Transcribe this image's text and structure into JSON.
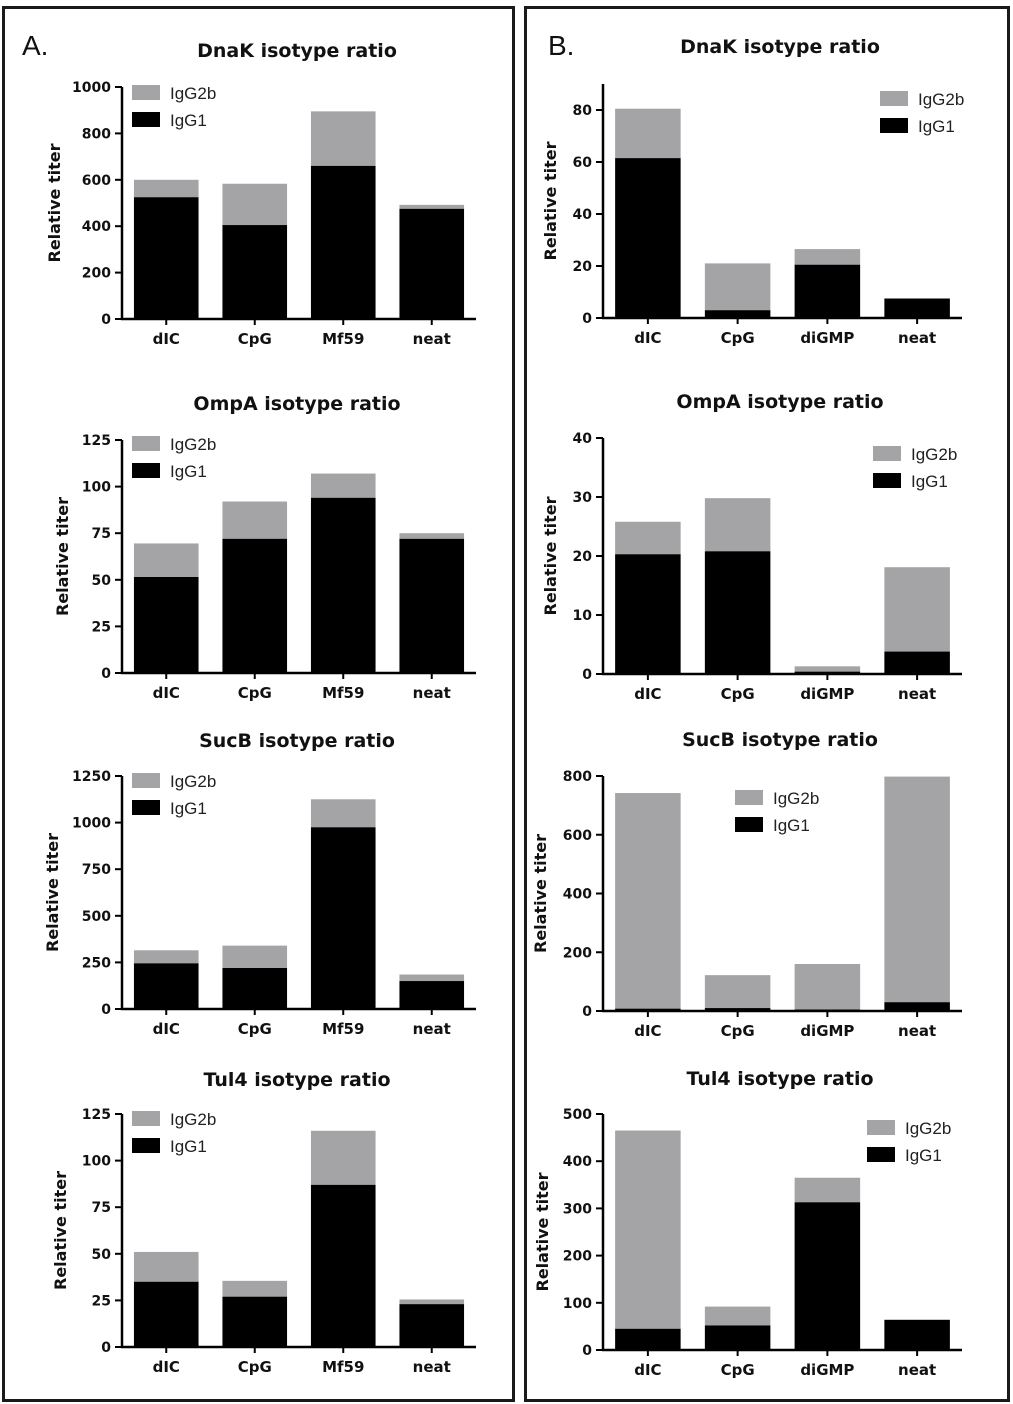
{
  "panels": [
    {
      "label": "A."
    },
    {
      "label": "B."
    }
  ],
  "colors": {
    "IgG2b": "#a4a4a6",
    "IgG1": "#000000"
  },
  "chart_data": [
    {
      "panel": "A.",
      "type": "bar",
      "stacked": true,
      "title": "DnaK isotype ratio",
      "xlabel": "",
      "ylabel": "Relative titer",
      "categories": [
        "dIC",
        "CpG",
        "Mf59",
        "neat"
      ],
      "ylim": [
        0,
        1000
      ],
      "yticks": [
        0,
        200,
        400,
        600,
        800,
        1000
      ],
      "legend": "top-left",
      "series": [
        {
          "name": "IgG1",
          "values": [
            525,
            405,
            660,
            475
          ]
        },
        {
          "name": "IgG2b",
          "values": [
            75,
            178,
            235,
            17
          ]
        }
      ]
    },
    {
      "panel": "A.",
      "type": "bar",
      "stacked": true,
      "title": "OmpA isotype ratio",
      "xlabel": "",
      "ylabel": "Relative titer",
      "categories": [
        "dIC",
        "CpG",
        "Mf59",
        "neat"
      ],
      "ylim": [
        0,
        125
      ],
      "yticks": [
        0,
        25,
        50,
        75,
        100,
        125
      ],
      "legend": "top-left",
      "series": [
        {
          "name": "IgG1",
          "values": [
            51.5,
            72,
            94,
            72
          ]
        },
        {
          "name": "IgG2b",
          "values": [
            18,
            20,
            13,
            3
          ]
        }
      ]
    },
    {
      "panel": "A.",
      "type": "bar",
      "stacked": true,
      "title": "SucB isotype ratio",
      "xlabel": "",
      "ylabel": "Relative titer",
      "categories": [
        "dIC",
        "CpG",
        "Mf59",
        "neat"
      ],
      "ylim": [
        0,
        1250
      ],
      "yticks": [
        0,
        250,
        500,
        750,
        1000,
        1250
      ],
      "legend": "top-left",
      "series": [
        {
          "name": "IgG1",
          "values": [
            245,
            220,
            975,
            150
          ]
        },
        {
          "name": "IgG2b",
          "values": [
            70,
            120,
            150,
            35
          ]
        }
      ]
    },
    {
      "panel": "A.",
      "type": "bar",
      "stacked": true,
      "title": "Tul4 isotype ratio",
      "xlabel": "",
      "ylabel": "Relative titer",
      "categories": [
        "dIC",
        "CpG",
        "Mf59",
        "neat"
      ],
      "ylim": [
        0,
        125
      ],
      "yticks": [
        0,
        25,
        50,
        75,
        100,
        125
      ],
      "legend": "top-left",
      "series": [
        {
          "name": "IgG1",
          "values": [
            35,
            27,
            87,
            23
          ]
        },
        {
          "name": "IgG2b",
          "values": [
            16,
            8.5,
            29,
            2.5
          ]
        }
      ]
    },
    {
      "panel": "B.",
      "type": "bar",
      "stacked": true,
      "title": "DnaK isotype ratio",
      "xlabel": "",
      "ylabel": "Relative titer",
      "categories": [
        "dIC",
        "CpG",
        "diGMP",
        "neat"
      ],
      "ylim": [
        0,
        90
      ],
      "yticks": [
        0,
        20,
        40,
        60,
        80
      ],
      "legend": "top-right",
      "series": [
        {
          "name": "IgG1",
          "values": [
            61.5,
            3,
            20.5,
            7.5
          ]
        },
        {
          "name": "IgG2b",
          "values": [
            19,
            18,
            6,
            0
          ]
        }
      ]
    },
    {
      "panel": "B.",
      "type": "bar",
      "stacked": true,
      "title": "OmpA isotype ratio",
      "xlabel": "",
      "ylabel": "Relative titer",
      "categories": [
        "dIC",
        "CpG",
        "diGMP",
        "neat"
      ],
      "ylim": [
        0,
        40
      ],
      "yticks": [
        0,
        10,
        20,
        30,
        40
      ],
      "legend": "top-right",
      "series": [
        {
          "name": "IgG1",
          "values": [
            20.3,
            20.8,
            0.4,
            3.8
          ]
        },
        {
          "name": "IgG2b",
          "values": [
            5.5,
            9,
            0.9,
            14.3
          ]
        }
      ]
    },
    {
      "panel": "B.",
      "type": "bar",
      "stacked": true,
      "title": "SucB isotype ratio",
      "xlabel": "",
      "ylabel": "Relative titer",
      "categories": [
        "dIC",
        "CpG",
        "diGMP",
        "neat"
      ],
      "ylim": [
        0,
        800
      ],
      "yticks": [
        0,
        200,
        400,
        600,
        800
      ],
      "legend": "top-center",
      "series": [
        {
          "name": "IgG1",
          "values": [
            8,
            10,
            5,
            30
          ]
        },
        {
          "name": "IgG2b",
          "values": [
            734,
            112,
            155,
            768
          ]
        }
      ]
    },
    {
      "panel": "B.",
      "type": "bar",
      "stacked": true,
      "title": "Tul4 isotype ratio",
      "xlabel": "",
      "ylabel": "Relative titer",
      "categories": [
        "dIC",
        "CpG",
        "diGMP",
        "neat"
      ],
      "ylim": [
        0,
        500
      ],
      "yticks": [
        0,
        100,
        200,
        300,
        400,
        500
      ],
      "legend": "top-right",
      "series": [
        {
          "name": "IgG1",
          "values": [
            45,
            52,
            313,
            64
          ]
        },
        {
          "name": "IgG2b",
          "values": [
            420,
            40,
            52,
            0
          ]
        }
      ]
    }
  ]
}
